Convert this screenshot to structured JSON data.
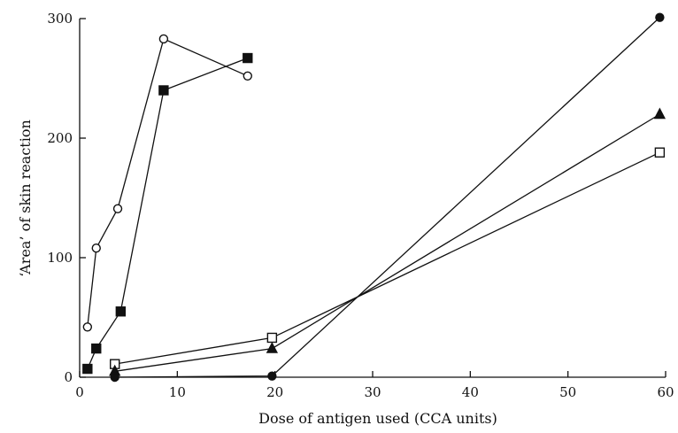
{
  "chart_data": {
    "type": "line",
    "xlabel": "Dose of antigen used  (CCA units)",
    "ylabel": "‘Area’ of skin reaction",
    "xlim": [
      0,
      60
    ],
    "ylim": [
      0,
      300
    ],
    "xticks": [
      0,
      10,
      20,
      30,
      40,
      50,
      60
    ],
    "yticks": [
      0,
      100,
      200,
      300
    ],
    "grid": false,
    "series": [
      {
        "marker": "open-circle",
        "points": [
          [
            0.8,
            42
          ],
          [
            1.7,
            108
          ],
          [
            3.9,
            141
          ],
          [
            8.6,
            283
          ],
          [
            17.2,
            252
          ]
        ]
      },
      {
        "marker": "filled-square",
        "points": [
          [
            0.8,
            7
          ],
          [
            1.7,
            24
          ],
          [
            4.2,
            55
          ],
          [
            8.6,
            240
          ],
          [
            17.2,
            267
          ]
        ]
      },
      {
        "marker": "open-square",
        "points": [
          [
            3.6,
            11
          ],
          [
            19.7,
            33
          ],
          [
            59.4,
            188
          ]
        ]
      },
      {
        "marker": "filled-triangle",
        "points": [
          [
            3.6,
            5
          ],
          [
            19.7,
            24
          ],
          [
            59.4,
            220
          ]
        ]
      },
      {
        "marker": "filled-circle",
        "points": [
          [
            3.6,
            0
          ],
          [
            19.7,
            1
          ],
          [
            59.4,
            301
          ]
        ]
      }
    ]
  }
}
